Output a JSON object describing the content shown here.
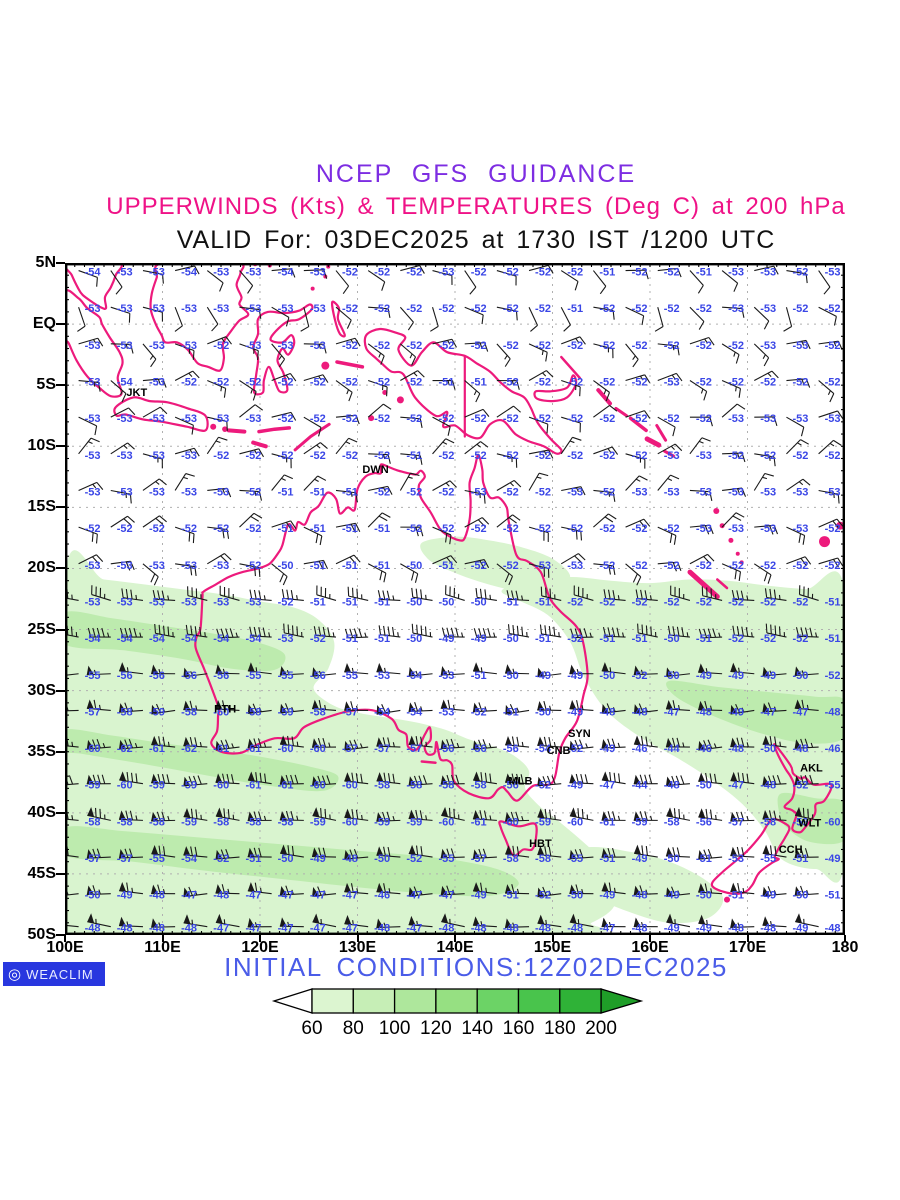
{
  "header": {
    "line1": "NCEP GFS GUIDANCE",
    "line2": "UPPERWINDS (Kts) & TEMPERATURES (Deg C) at 200 hPa",
    "line3": "VALID For: 03DEC2025 at 1730 IST /1200 UTC"
  },
  "map": {
    "lat_labels": [
      "5N",
      "EQ",
      "5S",
      "10S",
      "15S",
      "20S",
      "25S",
      "30S",
      "35S",
      "40S",
      "45S",
      "50S"
    ],
    "lon_labels": [
      "100E",
      "110E",
      "120E",
      "130E",
      "140E",
      "150E",
      "160E",
      "170E",
      "180"
    ],
    "stations": [
      {
        "id": "JKT",
        "lon": 106.3,
        "lat": -5.9
      },
      {
        "id": "DWN",
        "lon": 130.5,
        "lat": -12.2
      },
      {
        "id": "PTH",
        "lon": 115.3,
        "lat": -31.8
      },
      {
        "id": "SYN",
        "lon": 151.6,
        "lat": -33.8
      },
      {
        "id": "CNB",
        "lon": 149.4,
        "lat": -35.2
      },
      {
        "id": "MLB",
        "lon": 145.5,
        "lat": -37.7
      },
      {
        "id": "HBT",
        "lon": 147.6,
        "lat": -42.8
      },
      {
        "id": "AKL",
        "lon": 175.4,
        "lat": -36.6
      },
      {
        "id": "WLT",
        "lon": 175.2,
        "lat": -41.1
      },
      {
        "id": "CCH",
        "lon": 173.2,
        "lat": -43.3
      }
    ]
  },
  "chart_data": {
    "type": "heatmap",
    "title": "NCEP GFS GUIDANCE",
    "subtitle": "UPPERWINDS (Kts) & TEMPERATURES (Deg C) at 200 hPa",
    "valid": "VALID For: 03DEC2025 at 1730 IST /1200 UTC",
    "lon_range": [
      100,
      180
    ],
    "lat_range": [
      -50,
      5
    ],
    "grid": "dotted, 10 deg lon x 5 deg lat",
    "legend_position": "bottom",
    "shading_units": "Kts",
    "temp_units": "Deg C",
    "wind_temp_grid": {
      "lon_start": 101.6,
      "lon_step": 3.3,
      "cols": 24,
      "rows": [
        {
          "lat": 4.3,
          "wspd": 10,
          "wdir": 110,
          "temps": [
            -54,
            -53,
            -53,
            -54,
            -53,
            -53,
            -54,
            -53,
            -52,
            -52,
            -52,
            -53,
            -52,
            -52,
            -52,
            -52,
            -51,
            -52,
            -52,
            -51,
            -53,
            -53,
            -52,
            -53
          ]
        },
        {
          "lat": 1.3,
          "wspd": 10,
          "wdir": 130,
          "temps": [
            -53,
            -53,
            -53,
            -53,
            -53,
            -53,
            -53,
            -53,
            -52,
            -52,
            -52,
            -52,
            -52,
            -52,
            -52,
            -51,
            -52,
            -52,
            -52,
            -52,
            -53,
            -53,
            -52,
            -52
          ]
        },
        {
          "lat": -1.7,
          "wspd": 15,
          "wdir": 105,
          "temps": [
            -53,
            -53,
            -53,
            -53,
            -52,
            -53,
            -53,
            -53,
            -52,
            -52,
            -52,
            -52,
            -52,
            -52,
            -52,
            -52,
            -52,
            -52,
            -52,
            -52,
            -52,
            -53,
            -53,
            -52
          ]
        },
        {
          "lat": -4.7,
          "wspd": 15,
          "wdir": 95,
          "temps": [
            -53,
            -54,
            -53,
            -52,
            -52,
            -52,
            -52,
            -52,
            -52,
            -52,
            -52,
            -51,
            -51,
            -52,
            -52,
            -52,
            -52,
            -52,
            -53,
            -52,
            -52,
            -52,
            -52,
            -52
          ]
        },
        {
          "lat": -7.7,
          "wspd": 10,
          "wdir": 85,
          "temps": [
            -53,
            -53,
            -53,
            -53,
            -53,
            -53,
            -52,
            -52,
            -52,
            -52,
            -52,
            -52,
            -52,
            -52,
            -52,
            -52,
            -52,
            -52,
            -52,
            -52,
            -53,
            -53,
            -53,
            -53
          ]
        },
        {
          "lat": -10.7,
          "wspd": 15,
          "wdir": 70,
          "temps": [
            -53,
            -53,
            -53,
            -53,
            -52,
            -52,
            -52,
            -52,
            -52,
            -52,
            -51,
            -52,
            -52,
            -52,
            -52,
            -52,
            -52,
            -52,
            -53,
            -53,
            -52,
            -52,
            -52,
            -52
          ]
        },
        {
          "lat": -13.7,
          "wspd": 15,
          "wdir": 65,
          "temps": [
            -53,
            -53,
            -53,
            -53,
            -53,
            -52,
            -51,
            -51,
            -51,
            -52,
            -52,
            -52,
            -53,
            -52,
            -52,
            -53,
            -52,
            -53,
            -53,
            -53,
            -53,
            -53,
            -53,
            -53
          ]
        },
        {
          "lat": -16.7,
          "wspd": 20,
          "wdir": 80,
          "temps": [
            -52,
            -52,
            -52,
            -52,
            -52,
            -52,
            -51,
            -51,
            -51,
            -51,
            -52,
            -52,
            -52,
            -52,
            -52,
            -52,
            -52,
            -52,
            -52,
            -53,
            -53,
            -53,
            -53,
            -52
          ]
        },
        {
          "lat": -19.7,
          "wspd": 20,
          "wdir": 95,
          "temps": [
            -53,
            -53,
            -53,
            -53,
            -53,
            -52,
            -50,
            -51,
            -51,
            -51,
            -50,
            -51,
            -52,
            -52,
            -53,
            -53,
            -52,
            -52,
            -52,
            -52,
            -52,
            -52,
            -52,
            -52
          ]
        },
        {
          "lat": -22.7,
          "wspd": 35,
          "wdir": 280,
          "temps": [
            -53,
            -53,
            -53,
            -53,
            -53,
            -53,
            -52,
            -51,
            -51,
            -51,
            -50,
            -50,
            -50,
            -51,
            -51,
            -52,
            -52,
            -52,
            -52,
            -52,
            -52,
            -52,
            -52,
            -51
          ]
        },
        {
          "lat": -25.7,
          "wspd": 45,
          "wdir": 275,
          "temps": [
            -54,
            -54,
            -54,
            -54,
            -54,
            -54,
            -53,
            -52,
            -51,
            -51,
            -50,
            -49,
            -49,
            -50,
            -51,
            -52,
            -51,
            -51,
            -50,
            -51,
            -52,
            -52,
            -52,
            -51
          ]
        },
        {
          "lat": -28.7,
          "wspd": 55,
          "wdir": 270,
          "temps": [
            -55,
            -56,
            -56,
            -56,
            -56,
            -55,
            -55,
            -56,
            -55,
            -53,
            -54,
            -53,
            -51,
            -50,
            -49,
            -49,
            -50,
            -52,
            -50,
            -49,
            -49,
            -49,
            -50,
            -52
          ]
        },
        {
          "lat": -31.7,
          "wspd": 65,
          "wdir": 268,
          "temps": [
            -57,
            -58,
            -59,
            -58,
            -60,
            -58,
            -59,
            -58,
            -57,
            -54,
            -54,
            -53,
            -52,
            -51,
            -50,
            -49,
            -48,
            -48,
            -47,
            -48,
            -49,
            -47,
            -47,
            -48
          ]
        },
        {
          "lat": -34.7,
          "wspd": 75,
          "wdir": 270,
          "temps": [
            -60,
            -62,
            -61,
            -62,
            -61,
            -61,
            -60,
            -60,
            -57,
            -57,
            -57,
            -56,
            -56,
            -56,
            -54,
            -52,
            -49,
            -46,
            -44,
            -46,
            -48,
            -50,
            -48,
            -46
          ]
        },
        {
          "lat": -37.7,
          "wspd": 80,
          "wdir": 272,
          "temps": [
            -59,
            -60,
            -59,
            -59,
            -60,
            -61,
            -61,
            -60,
            -60,
            -58,
            -58,
            -58,
            -58,
            -56,
            -52,
            -49,
            -47,
            -44,
            -48,
            -50,
            -47,
            -48,
            -52,
            -55
          ]
        },
        {
          "lat": -40.7,
          "wspd": 75,
          "wdir": 275,
          "temps": [
            -58,
            -58,
            -58,
            -59,
            -58,
            -58,
            -58,
            -59,
            -60,
            -59,
            -59,
            -60,
            -61,
            -60,
            -59,
            -60,
            -61,
            -59,
            -58,
            -56,
            -57,
            -58,
            -59,
            -60
          ]
        },
        {
          "lat": -43.7,
          "wspd": 70,
          "wdir": 272,
          "temps": [
            -57,
            -57,
            -55,
            -54,
            -52,
            -51,
            -50,
            -49,
            -48,
            -50,
            -52,
            -55,
            -57,
            -58,
            -58,
            -55,
            -51,
            -49,
            -50,
            -51,
            -53,
            -55,
            -51,
            -49
          ]
        },
        {
          "lat": -46.7,
          "wspd": 65,
          "wdir": 270,
          "temps": [
            -50,
            -49,
            -48,
            -47,
            -48,
            -47,
            -47,
            -47,
            -47,
            -46,
            -47,
            -47,
            -49,
            -51,
            -52,
            -50,
            -49,
            -48,
            -49,
            -50,
            -51,
            -49,
            -50,
            -51
          ]
        },
        {
          "lat": -49.4,
          "wspd": 55,
          "wdir": 275,
          "temps": [
            -48,
            -48,
            -48,
            -48,
            -47,
            -47,
            -47,
            -47,
            -47,
            -48,
            -47,
            -48,
            -48,
            -48,
            -48,
            -48,
            -47,
            -48,
            -49,
            -49,
            -48,
            -48,
            -49,
            -48
          ]
        }
      ]
    },
    "colorbar": {
      "labels": [
        60,
        80,
        100,
        120,
        140,
        160,
        180,
        200
      ],
      "segment_colors": [
        "#dcf5d0",
        "#c6eeb6",
        "#aee79c",
        "#96e082",
        "#6cd366",
        "#49c44c",
        "#2fb237"
      ],
      "under_arrow_color": "#ffffff",
      "over_arrow_color": "#1f9e28"
    }
  },
  "footer": {
    "logo_text": "WEACLIM",
    "initial_conditions": "INITIAL CONDITIONS:12Z02DEC2025"
  },
  "colors": {
    "title_purple": "#7d2de2",
    "subtitle_magenta": "#ef1287",
    "coastline_pink": "#ed1a7c",
    "temperature_blue": "#3a46e6",
    "initial_blue": "#4a5ce8",
    "logo_bg_blue": "#2837df",
    "gridline_gray": "#b0b0b0",
    "barb_black": "#1a1a1a",
    "shade_light": "#d9f4cf",
    "shade_mid": "#bdebae"
  }
}
